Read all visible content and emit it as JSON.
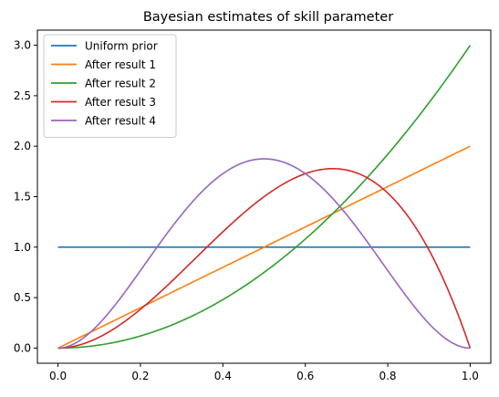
{
  "chart_data": {
    "type": "line",
    "title": "Bayesian estimates of skill parameter",
    "xlabel": "",
    "ylabel": "",
    "xlim": [
      -0.05,
      1.05
    ],
    "ylim": [
      -0.15,
      3.15
    ],
    "xticks": [
      0.0,
      0.2,
      0.4,
      0.6,
      0.8,
      1.0
    ],
    "xtick_labels": [
      "0.0",
      "0.2",
      "0.4",
      "0.6",
      "0.8",
      "1.0"
    ],
    "yticks": [
      0.0,
      0.5,
      1.0,
      1.5,
      2.0,
      2.5,
      3.0
    ],
    "ytick_labels": [
      "0.0",
      "0.5",
      "1.0",
      "1.5",
      "2.0",
      "2.5",
      "3.0"
    ],
    "grid": false,
    "legend_position": "top-left",
    "series": [
      {
        "name": "Uniform prior",
        "color": "#1f77b4",
        "x": [
          0.0,
          0.1,
          0.2,
          0.3,
          0.4,
          0.5,
          0.6,
          0.7,
          0.8,
          0.9,
          1.0
        ],
        "y": [
          1.0,
          1.0,
          1.0,
          1.0,
          1.0,
          1.0,
          1.0,
          1.0,
          1.0,
          1.0,
          1.0
        ]
      },
      {
        "name": "After result 1",
        "color": "#ff7f0e",
        "x": [
          0.0,
          0.1,
          0.2,
          0.3,
          0.4,
          0.5,
          0.6,
          0.7,
          0.8,
          0.9,
          1.0
        ],
        "y": [
          0.0,
          0.2,
          0.4,
          0.6,
          0.8,
          1.0,
          1.2,
          1.4,
          1.6,
          1.8,
          2.0
        ]
      },
      {
        "name": "After result 2",
        "color": "#2ca02c",
        "x": [
          0.0,
          0.1,
          0.2,
          0.3,
          0.4,
          0.5,
          0.6,
          0.7,
          0.8,
          0.9,
          1.0
        ],
        "y": [
          0.0,
          0.03,
          0.12,
          0.27,
          0.48,
          0.75,
          1.08,
          1.47,
          1.92,
          2.43,
          3.0
        ]
      },
      {
        "name": "After result 3",
        "color": "#d62728",
        "x": [
          0.0,
          0.1,
          0.2,
          0.3,
          0.4,
          0.5,
          0.6,
          0.667,
          0.7,
          0.8,
          0.9,
          1.0
        ],
        "y": [
          0.0,
          0.108,
          0.384,
          0.756,
          1.152,
          1.5,
          1.728,
          1.778,
          1.764,
          1.536,
          0.972,
          0.0
        ]
      },
      {
        "name": "After result 4",
        "color": "#9467bd",
        "x": [
          0.0,
          0.1,
          0.2,
          0.3,
          0.4,
          0.5,
          0.6,
          0.7,
          0.8,
          0.9,
          1.0
        ],
        "y": [
          0.0,
          0.1215,
          0.432,
          0.8505,
          1.296,
          1.875,
          1.728,
          1.323,
          0.768,
          0.243,
          0.0
        ]
      }
    ]
  }
}
